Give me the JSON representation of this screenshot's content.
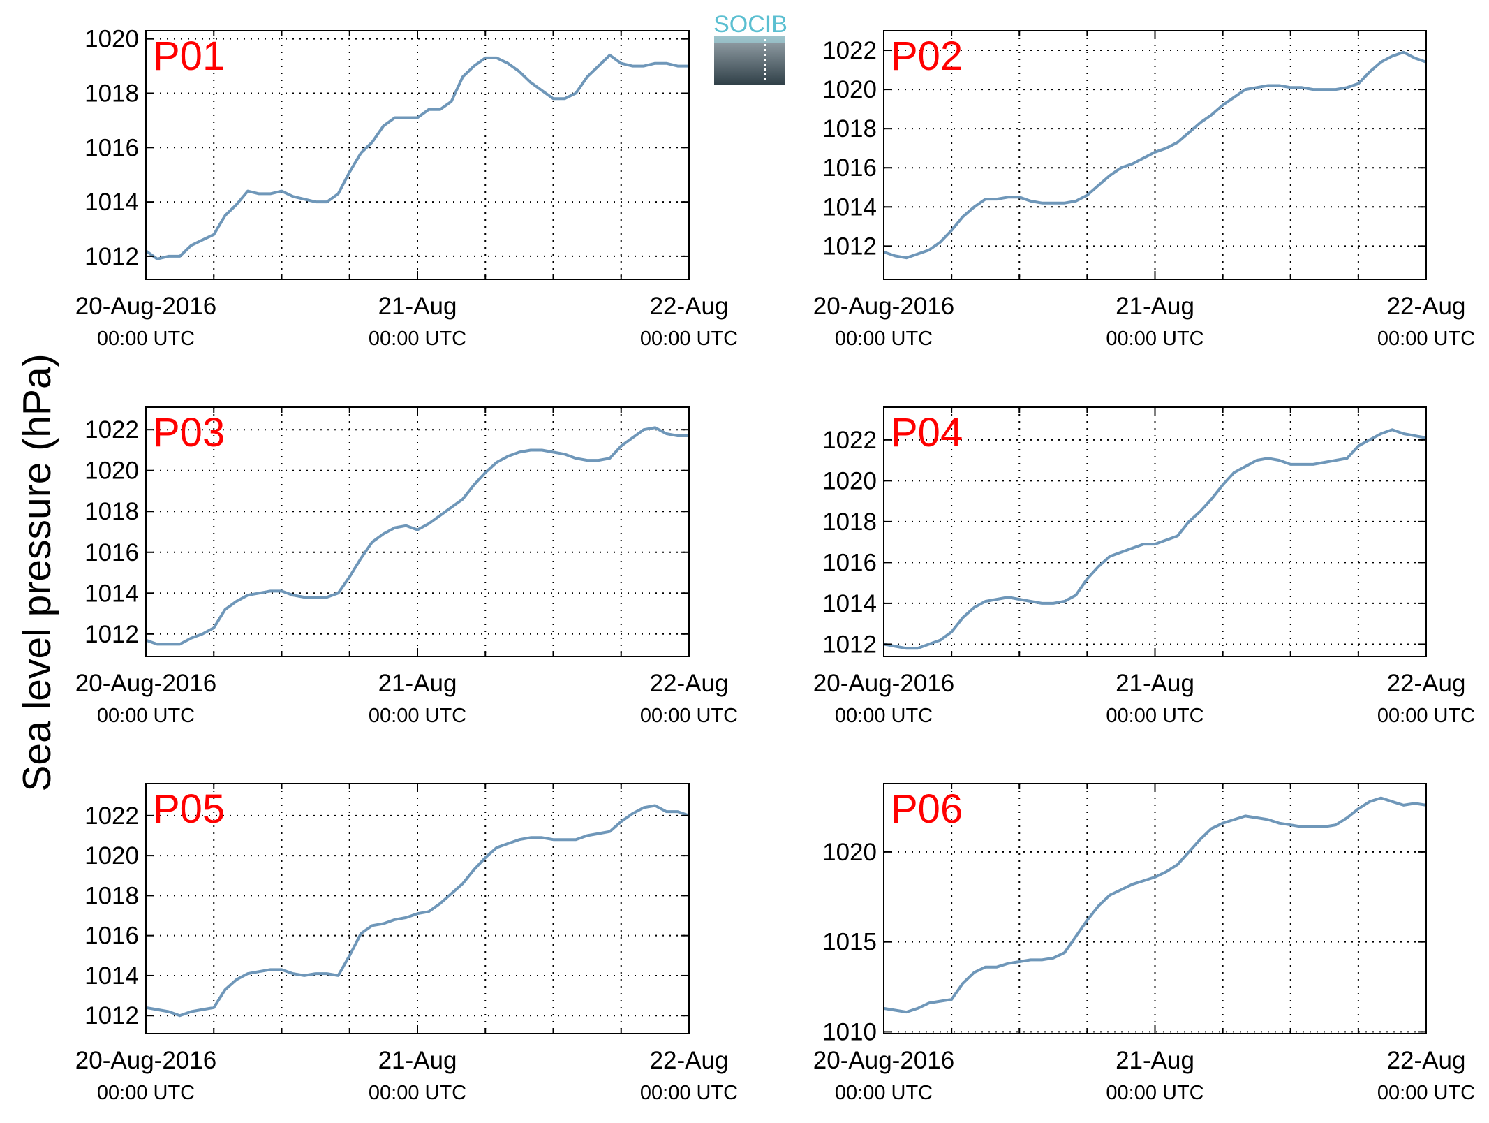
{
  "figure": {
    "ylabel": "Sea level pressure (hPa)",
    "logo_text": "SOCIB",
    "colors": {
      "line": "#6f97b9",
      "panel_label": "#ff0000",
      "grid": "#000000",
      "logo_top": "#5bbfd1",
      "logo_bottom": "#2f3f47"
    }
  },
  "chart_data": [
    {
      "type": "line",
      "title": "P01",
      "x_ticks": [
        {
          "label": "20-Aug-2016",
          "sub": "00:00 UTC"
        },
        {
          "label": "21-Aug",
          "sub": "00:00 UTC"
        },
        {
          "label": "22-Aug",
          "sub": "00:00 UTC"
        }
      ],
      "xlim": [
        0,
        48
      ],
      "ylim": [
        1011.15,
        1020.3
      ],
      "y_ticks": [
        1012,
        1014,
        1016,
        1018,
        1020
      ],
      "grid": true,
      "series": [
        {
          "x": [
            0,
            1,
            2,
            3,
            4,
            5,
            6,
            7,
            8,
            9,
            10,
            11,
            12,
            13,
            14,
            15,
            16,
            17,
            18,
            19,
            20,
            21,
            22,
            23,
            24,
            25,
            26,
            27,
            28,
            29,
            30,
            31,
            32,
            33,
            34,
            35,
            36,
            37,
            38,
            39,
            40,
            41,
            42,
            43,
            44,
            45,
            46,
            47,
            48
          ],
          "y": [
            1012.2,
            1011.9,
            1012.0,
            1012.0,
            1012.4,
            1012.6,
            1012.8,
            1013.5,
            1013.9,
            1014.4,
            1014.3,
            1014.3,
            1014.4,
            1014.2,
            1014.1,
            1014.0,
            1014.0,
            1014.3,
            1015.1,
            1015.8,
            1016.2,
            1016.8,
            1017.1,
            1017.1,
            1017.1,
            1017.4,
            1017.4,
            1017.7,
            1018.6,
            1019.0,
            1019.3,
            1019.3,
            1019.1,
            1018.8,
            1018.4,
            1018.1,
            1017.8,
            1017.8,
            1018.0,
            1018.6,
            1019.0,
            1019.4,
            1019.1,
            1019.0,
            1019.0,
            1019.1,
            1019.1,
            1019.0,
            1019.0
          ]
        }
      ]
    },
    {
      "type": "line",
      "title": "P02",
      "x_ticks": [
        {
          "label": "20-Aug-2016",
          "sub": "00:00 UTC"
        },
        {
          "label": "21-Aug",
          "sub": "00:00 UTC"
        },
        {
          "label": "22-Aug",
          "sub": "00:00 UTC"
        }
      ],
      "xlim": [
        0,
        48
      ],
      "ylim": [
        1010.3,
        1023.0
      ],
      "y_ticks": [
        1012,
        1014,
        1016,
        1018,
        1020,
        1022
      ],
      "grid": true,
      "series": [
        {
          "x": [
            0,
            1,
            2,
            3,
            4,
            5,
            6,
            7,
            8,
            9,
            10,
            11,
            12,
            13,
            14,
            15,
            16,
            17,
            18,
            19,
            20,
            21,
            22,
            23,
            24,
            25,
            26,
            27,
            28,
            29,
            30,
            31,
            32,
            33,
            34,
            35,
            36,
            37,
            38,
            39,
            40,
            41,
            42,
            43,
            44,
            45,
            46,
            47,
            48
          ],
          "y": [
            1011.7,
            1011.5,
            1011.4,
            1011.6,
            1011.8,
            1012.2,
            1012.8,
            1013.5,
            1014.0,
            1014.4,
            1014.4,
            1014.5,
            1014.5,
            1014.3,
            1014.2,
            1014.2,
            1014.2,
            1014.3,
            1014.6,
            1015.1,
            1015.6,
            1016.0,
            1016.2,
            1016.5,
            1016.8,
            1017.0,
            1017.3,
            1017.8,
            1018.3,
            1018.7,
            1019.2,
            1019.6,
            1020.0,
            1020.1,
            1020.2,
            1020.2,
            1020.1,
            1020.1,
            1020.0,
            1020.0,
            1020.0,
            1020.1,
            1020.3,
            1020.9,
            1021.4,
            1021.7,
            1021.9,
            1021.6,
            1021.4
          ]
        }
      ]
    },
    {
      "type": "line",
      "title": "P03",
      "x_ticks": [
        {
          "label": "20-Aug-2016",
          "sub": "00:00 UTC"
        },
        {
          "label": "21-Aug",
          "sub": "00:00 UTC"
        },
        {
          "label": "22-Aug",
          "sub": "00:00 UTC"
        }
      ],
      "xlim": [
        0,
        48
      ],
      "ylim": [
        1010.9,
        1023.1
      ],
      "y_ticks": [
        1012,
        1014,
        1016,
        1018,
        1020,
        1022
      ],
      "grid": true,
      "series": [
        {
          "x": [
            0,
            1,
            2,
            3,
            4,
            5,
            6,
            7,
            8,
            9,
            10,
            11,
            12,
            13,
            14,
            15,
            16,
            17,
            18,
            19,
            20,
            21,
            22,
            23,
            24,
            25,
            26,
            27,
            28,
            29,
            30,
            31,
            32,
            33,
            34,
            35,
            36,
            37,
            38,
            39,
            40,
            41,
            42,
            43,
            44,
            45,
            46,
            47,
            48
          ],
          "y": [
            1011.7,
            1011.5,
            1011.5,
            1011.5,
            1011.8,
            1012.0,
            1012.3,
            1013.2,
            1013.6,
            1013.9,
            1014.0,
            1014.1,
            1014.1,
            1013.9,
            1013.8,
            1013.8,
            1013.8,
            1014.0,
            1014.8,
            1015.7,
            1016.5,
            1016.9,
            1017.2,
            1017.3,
            1017.1,
            1017.4,
            1017.8,
            1018.2,
            1018.6,
            1019.3,
            1019.9,
            1020.4,
            1020.7,
            1020.9,
            1021.0,
            1021.0,
            1020.9,
            1020.8,
            1020.6,
            1020.5,
            1020.5,
            1020.6,
            1021.2,
            1021.6,
            1022.0,
            1022.1,
            1021.8,
            1021.7,
            1021.7
          ]
        }
      ]
    },
    {
      "type": "line",
      "title": "P04",
      "x_ticks": [
        {
          "label": "20-Aug-2016",
          "sub": "00:00 UTC"
        },
        {
          "label": "21-Aug",
          "sub": "00:00 UTC"
        },
        {
          "label": "22-Aug",
          "sub": "00:00 UTC"
        }
      ],
      "xlim": [
        0,
        48
      ],
      "ylim": [
        1011.4,
        1023.6
      ],
      "y_ticks": [
        1012,
        1014,
        1016,
        1018,
        1020,
        1022
      ],
      "grid": true,
      "series": [
        {
          "x": [
            0,
            1,
            2,
            3,
            4,
            5,
            6,
            7,
            8,
            9,
            10,
            11,
            12,
            13,
            14,
            15,
            16,
            17,
            18,
            19,
            20,
            21,
            22,
            23,
            24,
            25,
            26,
            27,
            28,
            29,
            30,
            31,
            32,
            33,
            34,
            35,
            36,
            37,
            38,
            39,
            40,
            41,
            42,
            43,
            44,
            45,
            46,
            47,
            48
          ],
          "y": [
            1012.0,
            1011.9,
            1011.8,
            1011.8,
            1012.0,
            1012.2,
            1012.6,
            1013.3,
            1013.8,
            1014.1,
            1014.2,
            1014.3,
            1014.2,
            1014.1,
            1014.0,
            1014.0,
            1014.1,
            1014.4,
            1015.2,
            1015.8,
            1016.3,
            1016.5,
            1016.7,
            1016.9,
            1016.9,
            1017.1,
            1017.3,
            1018.0,
            1018.5,
            1019.1,
            1019.8,
            1020.4,
            1020.7,
            1021.0,
            1021.1,
            1021.0,
            1020.8,
            1020.8,
            1020.8,
            1020.9,
            1021.0,
            1021.1,
            1021.7,
            1022.0,
            1022.3,
            1022.5,
            1022.3,
            1022.2,
            1022.1
          ]
        }
      ]
    },
    {
      "type": "line",
      "title": "P05",
      "x_ticks": [
        {
          "label": "20-Aug-2016",
          "sub": "00:00 UTC"
        },
        {
          "label": "21-Aug",
          "sub": "00:00 UTC"
        },
        {
          "label": "22-Aug",
          "sub": "00:00 UTC"
        }
      ],
      "xlim": [
        0,
        48
      ],
      "ylim": [
        1011.1,
        1023.6
      ],
      "y_ticks": [
        1012,
        1014,
        1016,
        1018,
        1020,
        1022
      ],
      "grid": true,
      "series": [
        {
          "x": [
            0,
            1,
            2,
            3,
            4,
            5,
            6,
            7,
            8,
            9,
            10,
            11,
            12,
            13,
            14,
            15,
            16,
            17,
            18,
            19,
            20,
            21,
            22,
            23,
            24,
            25,
            26,
            27,
            28,
            29,
            30,
            31,
            32,
            33,
            34,
            35,
            36,
            37,
            38,
            39,
            40,
            41,
            42,
            43,
            44,
            45,
            46,
            47,
            48
          ],
          "y": [
            1012.4,
            1012.3,
            1012.2,
            1012.0,
            1012.2,
            1012.3,
            1012.4,
            1013.3,
            1013.8,
            1014.1,
            1014.2,
            1014.3,
            1014.3,
            1014.1,
            1014.0,
            1014.1,
            1014.1,
            1014.0,
            1015.0,
            1016.1,
            1016.5,
            1016.6,
            1016.8,
            1016.9,
            1017.1,
            1017.2,
            1017.6,
            1018.1,
            1018.6,
            1019.3,
            1019.9,
            1020.4,
            1020.6,
            1020.8,
            1020.9,
            1020.9,
            1020.8,
            1020.8,
            1020.8,
            1021.0,
            1021.1,
            1021.2,
            1021.7,
            1022.1,
            1022.4,
            1022.5,
            1022.2,
            1022.2,
            1022.0
          ]
        }
      ]
    },
    {
      "type": "line",
      "title": "P06",
      "x_ticks": [
        {
          "label": "20-Aug-2016",
          "sub": "00:00 UTC"
        },
        {
          "label": "21-Aug",
          "sub": "00:00 UTC"
        },
        {
          "label": "22-Aug",
          "sub": "00:00 UTC"
        }
      ],
      "xlim": [
        0,
        48
      ],
      "ylim": [
        1009.9,
        1023.8
      ],
      "y_ticks": [
        1010,
        1015,
        1020
      ],
      "grid": true,
      "series": [
        {
          "x": [
            0,
            1,
            2,
            3,
            4,
            5,
            6,
            7,
            8,
            9,
            10,
            11,
            12,
            13,
            14,
            15,
            16,
            17,
            18,
            19,
            20,
            21,
            22,
            23,
            24,
            25,
            26,
            27,
            28,
            29,
            30,
            31,
            32,
            33,
            34,
            35,
            36,
            37,
            38,
            39,
            40,
            41,
            42,
            43,
            44,
            45,
            46,
            47,
            48
          ],
          "y": [
            1011.3,
            1011.2,
            1011.1,
            1011.3,
            1011.6,
            1011.7,
            1011.8,
            1012.7,
            1013.3,
            1013.6,
            1013.6,
            1013.8,
            1013.9,
            1014.0,
            1014.0,
            1014.1,
            1014.4,
            1015.3,
            1016.2,
            1017.0,
            1017.6,
            1017.9,
            1018.2,
            1018.4,
            1018.6,
            1018.9,
            1019.3,
            1020.0,
            1020.7,
            1021.3,
            1021.6,
            1021.8,
            1022.0,
            1021.9,
            1021.8,
            1021.6,
            1021.5,
            1021.4,
            1021.4,
            1021.4,
            1021.5,
            1021.9,
            1022.4,
            1022.8,
            1023.0,
            1022.8,
            1022.6,
            1022.7,
            1022.6
          ]
        }
      ]
    }
  ]
}
